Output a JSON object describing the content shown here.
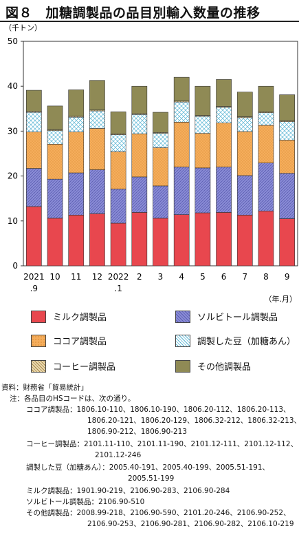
{
  "title": "図８　加糖調製品の品目別輸入数量の推移",
  "y_unit": "（千トン）",
  "x_unit": "（年.月）",
  "chart_data": {
    "type": "bar",
    "stacked": true,
    "categories": [
      "2021\n.9",
      "10",
      "11",
      "12",
      "2022\n.1",
      "2",
      "3",
      "4",
      "5",
      "6",
      "7",
      "8",
      "9"
    ],
    "series": [
      {
        "name": "ミルク調製品",
        "values": [
          13.2,
          10.6,
          11.3,
          11.6,
          9.5,
          11.9,
          10.6,
          11.4,
          11.8,
          11.9,
          11.3,
          12.2,
          10.5
        ],
        "color": "#e8474e"
      },
      {
        "name": "ソルビトール調製品",
        "values": [
          8.5,
          8.7,
          9.4,
          9.8,
          7.6,
          7.9,
          7.2,
          10.6,
          10.0,
          10.1,
          8.8,
          10.7,
          10.1
        ],
        "color": "#8a8cd6"
      },
      {
        "name": "ココア調製品",
        "values": [
          8.1,
          7.8,
          9.1,
          9.2,
          8.3,
          9.6,
          8.5,
          10.0,
          7.7,
          9.8,
          9.8,
          8.4,
          7.4
        ],
        "color": "#f5ad5c"
      },
      {
        "name": "調製した豆（加糖あん）",
        "values": [
          4.4,
          3.0,
          3.3,
          3.9,
          3.8,
          4.3,
          3.2,
          4.5,
          3.8,
          3.5,
          3.1,
          2.8,
          4.1
        ],
        "color": "#cdeaf3"
      },
      {
        "name": "コーヒー調製品",
        "values": [
          0.2,
          0.2,
          0.2,
          0.2,
          0.2,
          0.2,
          0.2,
          0.2,
          0.2,
          0.2,
          0.2,
          0.2,
          0.2
        ],
        "color": "#e9d8ae"
      },
      {
        "name": "その他調製品",
        "values": [
          4.7,
          5.3,
          5.9,
          6.6,
          4.9,
          6.1,
          4.5,
          5.3,
          6.5,
          6.0,
          5.5,
          5.7,
          5.8
        ],
        "color": "#8f8a55"
      }
    ],
    "ylim": [
      0,
      50
    ],
    "yticks": [
      0,
      10,
      20,
      30,
      40,
      50
    ],
    "grid": false,
    "legend_position": "bottom"
  },
  "legend": [
    {
      "label": "ミルク調製品",
      "color": "#e8474e"
    },
    {
      "label": "ソルビトール調製品",
      "color": "#8a8cd6"
    },
    {
      "label": "ココア調製品",
      "color": "#f5ad5c"
    },
    {
      "label": "調製した豆（加糖あん）",
      "color": "#cdeaf3"
    },
    {
      "label": "コーヒー調製品",
      "color": "#e9d8ae"
    },
    {
      "label": "その他調製品",
      "color": "#8f8a55"
    }
  ],
  "notes": {
    "source": "資料：財務省「貿易統計」",
    "note_head": "注：各品目のHSコードは、次の通り。",
    "cocoa_1": "ココア調製品：1806.10-110、1806.10-190、1806.20-112、1806.20-113、",
    "cocoa_2": "1806.20-121、1806.20-129、1806.32-212、1806.32-213、",
    "cocoa_3": "1806.90-212、1806.90-213",
    "coffee_1": "コーヒー調製品：2101.11-110、2101.11-190、2101.12-111、2101.12-112、",
    "coffee_2": "2101.12-246",
    "bean_1": "調製した豆（加糖あん）：2005.40-191、2005.40-199、2005.51-191、",
    "bean_2": "2005.51-199",
    "milk": "ミルク調製品：1901.90-219、2106.90-283、2106.90-284",
    "sorbitol": "ソルビトール調製品：2106.90-510",
    "other_1": "その他調製品：2008.99-218、2106.90-590、2101.20-246、2106.90-252、",
    "other_2": "2106.90-253、2106.90-281、2106.90-282、2106.10-219"
  }
}
